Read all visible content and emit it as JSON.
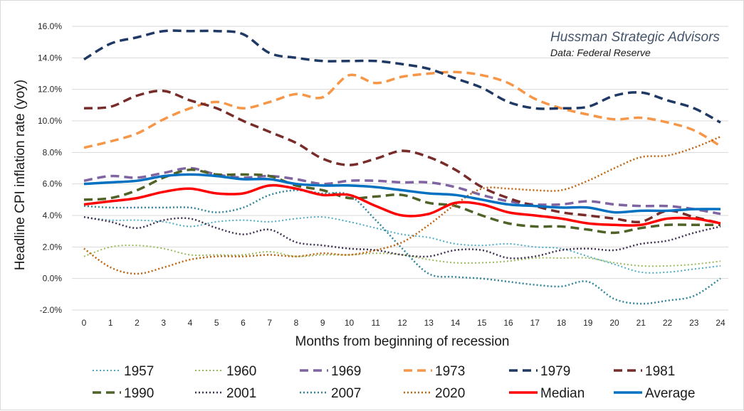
{
  "chart_data": {
    "type": "line",
    "title": "",
    "xlabel": "Months from beginning of recession",
    "ylabel": "Headline CPI inflation rate (yoy)",
    "x": [
      0,
      1,
      2,
      3,
      4,
      5,
      6,
      7,
      8,
      9,
      10,
      11,
      12,
      13,
      14,
      15,
      16,
      17,
      18,
      19,
      20,
      21,
      22,
      23,
      24
    ],
    "xlim": [
      0,
      24
    ],
    "ylim": [
      -2,
      16
    ],
    "yticks": [
      -2,
      0,
      2,
      4,
      6,
      8,
      10,
      12,
      14,
      16
    ],
    "ytick_labels": [
      "-2.0%",
      "0.0%",
      "2.0%",
      "4.0%",
      "6.0%",
      "8.0%",
      "10.0%",
      "12.0%",
      "14.0%",
      "16.0%"
    ],
    "grid": "horizontal",
    "legend_position": "bottom",
    "annotation": {
      "title": "Hussman Strategic Advisors",
      "subtitle": "Data: Federal Reserve"
    },
    "series": [
      {
        "name": "1957",
        "color": "#4bacc6",
        "style": "dot",
        "width": 2,
        "values": [
          3.9,
          3.7,
          3.7,
          3.6,
          3.3,
          3.6,
          3.7,
          3.6,
          3.8,
          3.9,
          3.6,
          3.2,
          2.8,
          2.6,
          2.2,
          2.1,
          2.2,
          2.0,
          1.9,
          1.4,
          0.9,
          0.4,
          0.4,
          0.6,
          0.8
        ]
      },
      {
        "name": "1960",
        "color": "#9bbb59",
        "style": "dot",
        "width": 2,
        "values": [
          1.4,
          2.0,
          2.1,
          1.9,
          1.5,
          1.5,
          1.5,
          1.7,
          1.4,
          1.5,
          1.5,
          1.6,
          1.5,
          1.2,
          1.0,
          1.0,
          1.1,
          1.3,
          1.3,
          1.3,
          1.0,
          0.8,
          0.8,
          0.9,
          1.1
        ]
      },
      {
        "name": "1969",
        "color": "#8064a2",
        "style": "dash",
        "width": 3.5,
        "values": [
          6.2,
          6.5,
          6.4,
          6.7,
          7.0,
          6.6,
          6.4,
          6.5,
          6.3,
          6.0,
          6.2,
          6.2,
          6.1,
          6.1,
          5.8,
          5.3,
          4.9,
          4.7,
          4.7,
          4.9,
          4.7,
          4.6,
          4.6,
          4.4,
          4.1
        ]
      },
      {
        "name": "1973",
        "color": "#f79646",
        "style": "dash",
        "width": 3.5,
        "values": [
          8.3,
          8.7,
          9.2,
          10.1,
          10.8,
          11.2,
          10.8,
          11.2,
          11.7,
          11.5,
          12.9,
          12.4,
          12.8,
          13.0,
          13.1,
          12.9,
          12.4,
          11.4,
          10.8,
          10.4,
          10.1,
          10.2,
          9.9,
          9.4,
          8.4
        ]
      },
      {
        "name": "1979",
        "color": "#1f3864",
        "style": "dash",
        "width": 3.5,
        "values": [
          13.9,
          14.9,
          15.3,
          15.7,
          15.7,
          15.7,
          15.5,
          14.3,
          14.0,
          13.8,
          13.8,
          13.8,
          13.6,
          13.3,
          12.7,
          12.1,
          11.2,
          10.8,
          10.8,
          10.9,
          11.6,
          11.8,
          11.3,
          10.8,
          9.9
        ]
      },
      {
        "name": "1981",
        "color": "#772c2a",
        "style": "dash",
        "width": 3.5,
        "values": [
          10.8,
          10.9,
          11.6,
          11.9,
          11.3,
          10.8,
          10.0,
          9.3,
          8.6,
          7.6,
          7.2,
          7.6,
          8.1,
          7.7,
          6.9,
          5.8,
          5.1,
          4.6,
          4.2,
          4.0,
          3.8,
          3.6,
          4.3,
          3.9,
          3.5
        ]
      },
      {
        "name": "1990",
        "color": "#4f6228",
        "style": "dash",
        "width": 3.5,
        "values": [
          5.0,
          5.1,
          5.6,
          6.4,
          6.9,
          6.6,
          6.6,
          6.5,
          5.9,
          5.6,
          5.1,
          5.2,
          5.3,
          4.8,
          4.6,
          4.0,
          3.5,
          3.3,
          3.3,
          3.1,
          2.9,
          3.2,
          3.4,
          3.4,
          3.4
        ]
      },
      {
        "name": "2001",
        "color": "#403152",
        "style": "dot",
        "width": 2.5,
        "values": [
          3.9,
          3.6,
          3.2,
          3.7,
          3.8,
          3.2,
          2.8,
          3.1,
          2.3,
          2.1,
          1.9,
          1.8,
          1.5,
          1.4,
          1.8,
          1.8,
          1.3,
          1.4,
          1.8,
          1.9,
          1.8,
          2.2,
          2.4,
          2.9,
          3.3
        ]
      },
      {
        "name": "2007",
        "color": "#31859c",
        "style": "dot",
        "width": 2.5,
        "values": [
          4.6,
          4.5,
          4.5,
          4.5,
          4.5,
          4.2,
          4.5,
          5.3,
          5.6,
          5.4,
          5.3,
          3.7,
          1.9,
          0.3,
          0.1,
          0.0,
          -0.2,
          -0.4,
          -0.5,
          -0.2,
          -1.3,
          -1.6,
          -1.4,
          -1.1,
          0.0
        ]
      },
      {
        "name": "2020",
        "color": "#c0630f",
        "style": "dot",
        "width": 2.5,
        "values": [
          1.9,
          0.7,
          0.3,
          0.7,
          1.2,
          1.4,
          1.4,
          1.5,
          1.4,
          1.6,
          1.5,
          1.8,
          2.3,
          3.4,
          4.7,
          5.7,
          5.7,
          5.6,
          5.6,
          6.2,
          7.0,
          7.7,
          7.8,
          8.3,
          9.0
        ]
      },
      {
        "name": "Median",
        "color": "#ff0000",
        "style": "solid",
        "width": 3.5,
        "values": [
          4.7,
          4.9,
          5.1,
          5.5,
          5.7,
          5.4,
          5.4,
          5.9,
          5.7,
          5.3,
          5.3,
          4.6,
          4.0,
          4.1,
          4.8,
          4.7,
          4.2,
          4.0,
          3.8,
          3.5,
          3.4,
          3.4,
          3.8,
          3.8,
          3.5
        ]
      },
      {
        "name": "Average",
        "color": "#0070c0",
        "style": "solid",
        "width": 3.5,
        "values": [
          6.0,
          6.1,
          6.2,
          6.5,
          6.6,
          6.5,
          6.3,
          6.3,
          6.0,
          5.9,
          5.9,
          5.8,
          5.6,
          5.4,
          5.3,
          5.0,
          4.7,
          4.6,
          4.5,
          4.5,
          4.2,
          4.3,
          4.3,
          4.4,
          4.4
        ]
      }
    ]
  }
}
